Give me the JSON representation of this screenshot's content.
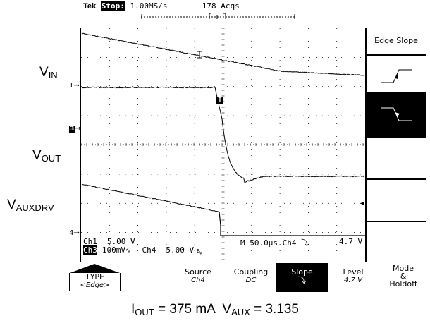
{
  "header": {
    "brand": "Tek",
    "state": "Stop:",
    "rate": "1.00MS/s",
    "acqs": "178 Acqs"
  },
  "signals": {
    "vin": {
      "main": "V",
      "sub": "IN"
    },
    "vout": {
      "main": "V",
      "sub": "OUT"
    },
    "vauxdrv": {
      "main": "V",
      "sub": "AUXDRV"
    }
  },
  "markers": {
    "ch1": "1",
    "ch3": "3",
    "ch4": "4",
    "trigger": "T"
  },
  "readout": {
    "ch1_name": "Ch1",
    "ch1_scale": "5.00 V",
    "ch3_name": "Ch3",
    "ch3_scale": "100mV",
    "ch4_name": "Ch4",
    "ch4_scale": "5.00 V",
    "timebase": "M 50.0µs",
    "trig_source": "Ch4",
    "trig_level": "4.7 V"
  },
  "side_menu": {
    "title": "Edge Slope"
  },
  "bottom_menu": {
    "type_label": "TYPE",
    "type_value": "<Edge>",
    "source_label": "Source",
    "source_value": "Ch4",
    "coupling_label": "Coupling",
    "coupling_value": "DC",
    "slope_label": "Slope",
    "level_label": "Level",
    "level_value": "4.7 V",
    "mode_label_1": "Mode",
    "mode_label_2": "&",
    "mode_label_3": "Holdoff"
  },
  "caption": {
    "iout_main": "I",
    "iout_sub": "OUT",
    "iout_val": " = 375 mA  ",
    "vaux_main": "V",
    "vaux_sub": "AUX",
    "vaux_val": " = 3.135"
  },
  "colors": {
    "background": "#ffffff",
    "ink": "#000000"
  },
  "icons": [
    "rising-edge-icon",
    "falling-edge-icon",
    "trigger-marker-icon",
    "falling-slope-icon",
    "ground-marker-icon"
  ]
}
